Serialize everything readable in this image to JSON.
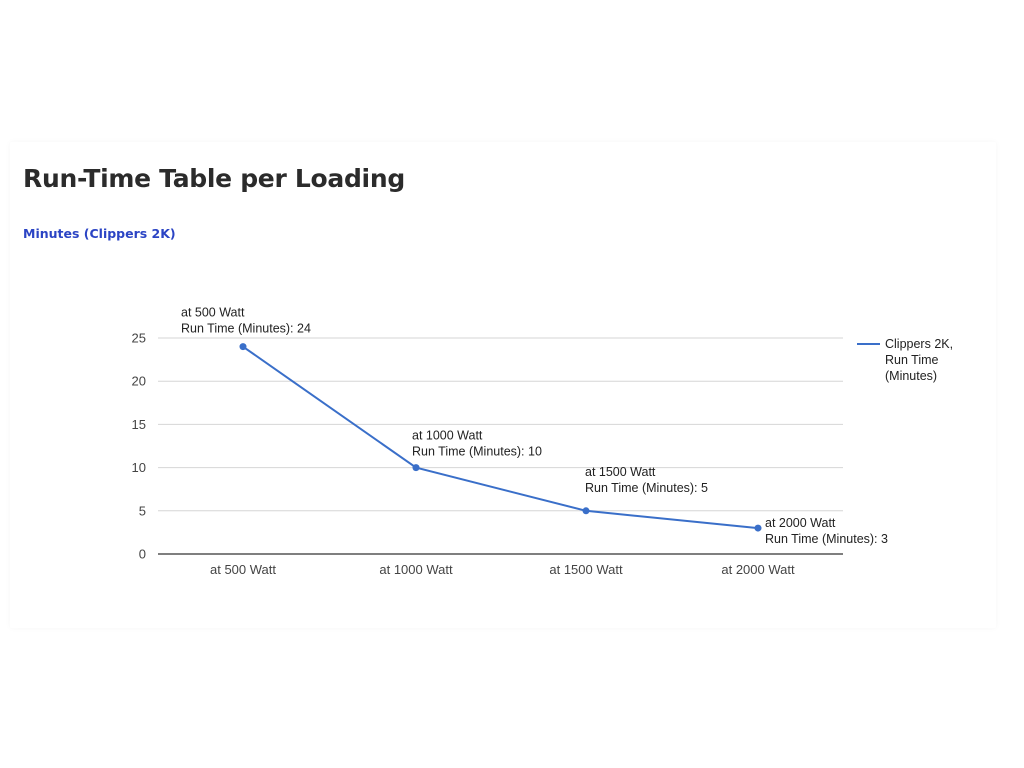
{
  "page": {
    "title": "Run-Time Table per Loading",
    "subtitle": "Minutes (Clippers 2K)"
  },
  "chart_data": {
    "type": "line",
    "categories": [
      "at 500 Watt",
      "at 1000 Watt",
      "at 1500 Watt",
      "at 2000 Watt"
    ],
    "series": [
      {
        "name": "Clippers 2K, Run Time (Minutes)",
        "values": [
          24,
          10,
          5,
          3
        ],
        "color": "#3a6fc9"
      }
    ],
    "annotations": [
      {
        "line1": "at 500 Watt",
        "line2": "Run Time (Minutes): 24"
      },
      {
        "line1": "at 1000 Watt",
        "line2": "Run Time (Minutes): 10"
      },
      {
        "line1": "at 1500 Watt",
        "line2": "Run Time (Minutes): 5"
      },
      {
        "line1": "at 2000 Watt",
        "line2": "Run Time (Minutes): 3"
      }
    ],
    "legend": {
      "lines": [
        "Clippers 2K,",
        "Run Time",
        "(Minutes)"
      ],
      "position": "right"
    },
    "yticks": [
      0,
      5,
      10,
      15,
      20,
      25
    ],
    "ylim": [
      0,
      25
    ],
    "grid": true,
    "xlabel": "",
    "ylabel": ""
  }
}
